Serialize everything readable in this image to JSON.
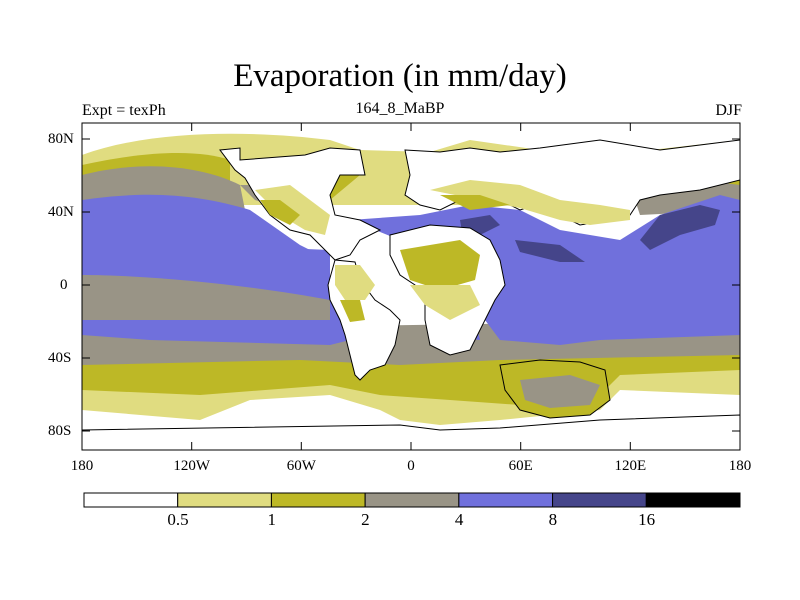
{
  "title": "Evaporation (in mm/day)",
  "subtitle_left": "Expt = texPh",
  "subtitle_center": "164_8_MaBP",
  "subtitle_right": "DJF",
  "y_ticks": [
    "80N",
    "40N",
    "0",
    "40S",
    "80S"
  ],
  "x_ticks": [
    "180",
    "120W",
    "60W",
    "0",
    "60E",
    "120E",
    "180"
  ],
  "colorbar": {
    "levels": [
      "0.5",
      "1",
      "2",
      "4",
      "8",
      "16"
    ],
    "colors": [
      "#ffffff",
      "#e0dc80",
      "#bdb826",
      "#999486",
      "#7070dc",
      "#45458a",
      "#000000"
    ]
  },
  "chart_data": {
    "type": "heatmap",
    "title": "Evaporation (in mm/day)",
    "variable": "Evaporation",
    "units": "mm/day",
    "experiment": "texPh",
    "period": "164_8_MaBP",
    "season": "DJF",
    "x_range": [
      -180,
      180
    ],
    "y_range": [
      -90,
      90
    ],
    "x_tick_labels": [
      "180",
      "120W",
      "60W",
      "0",
      "60E",
      "120E",
      "180"
    ],
    "y_tick_labels": [
      "80N",
      "40N",
      "0",
      "40S",
      "80S"
    ],
    "contour_levels": [
      0.5,
      1,
      2,
      4,
      8,
      16
    ]
  }
}
